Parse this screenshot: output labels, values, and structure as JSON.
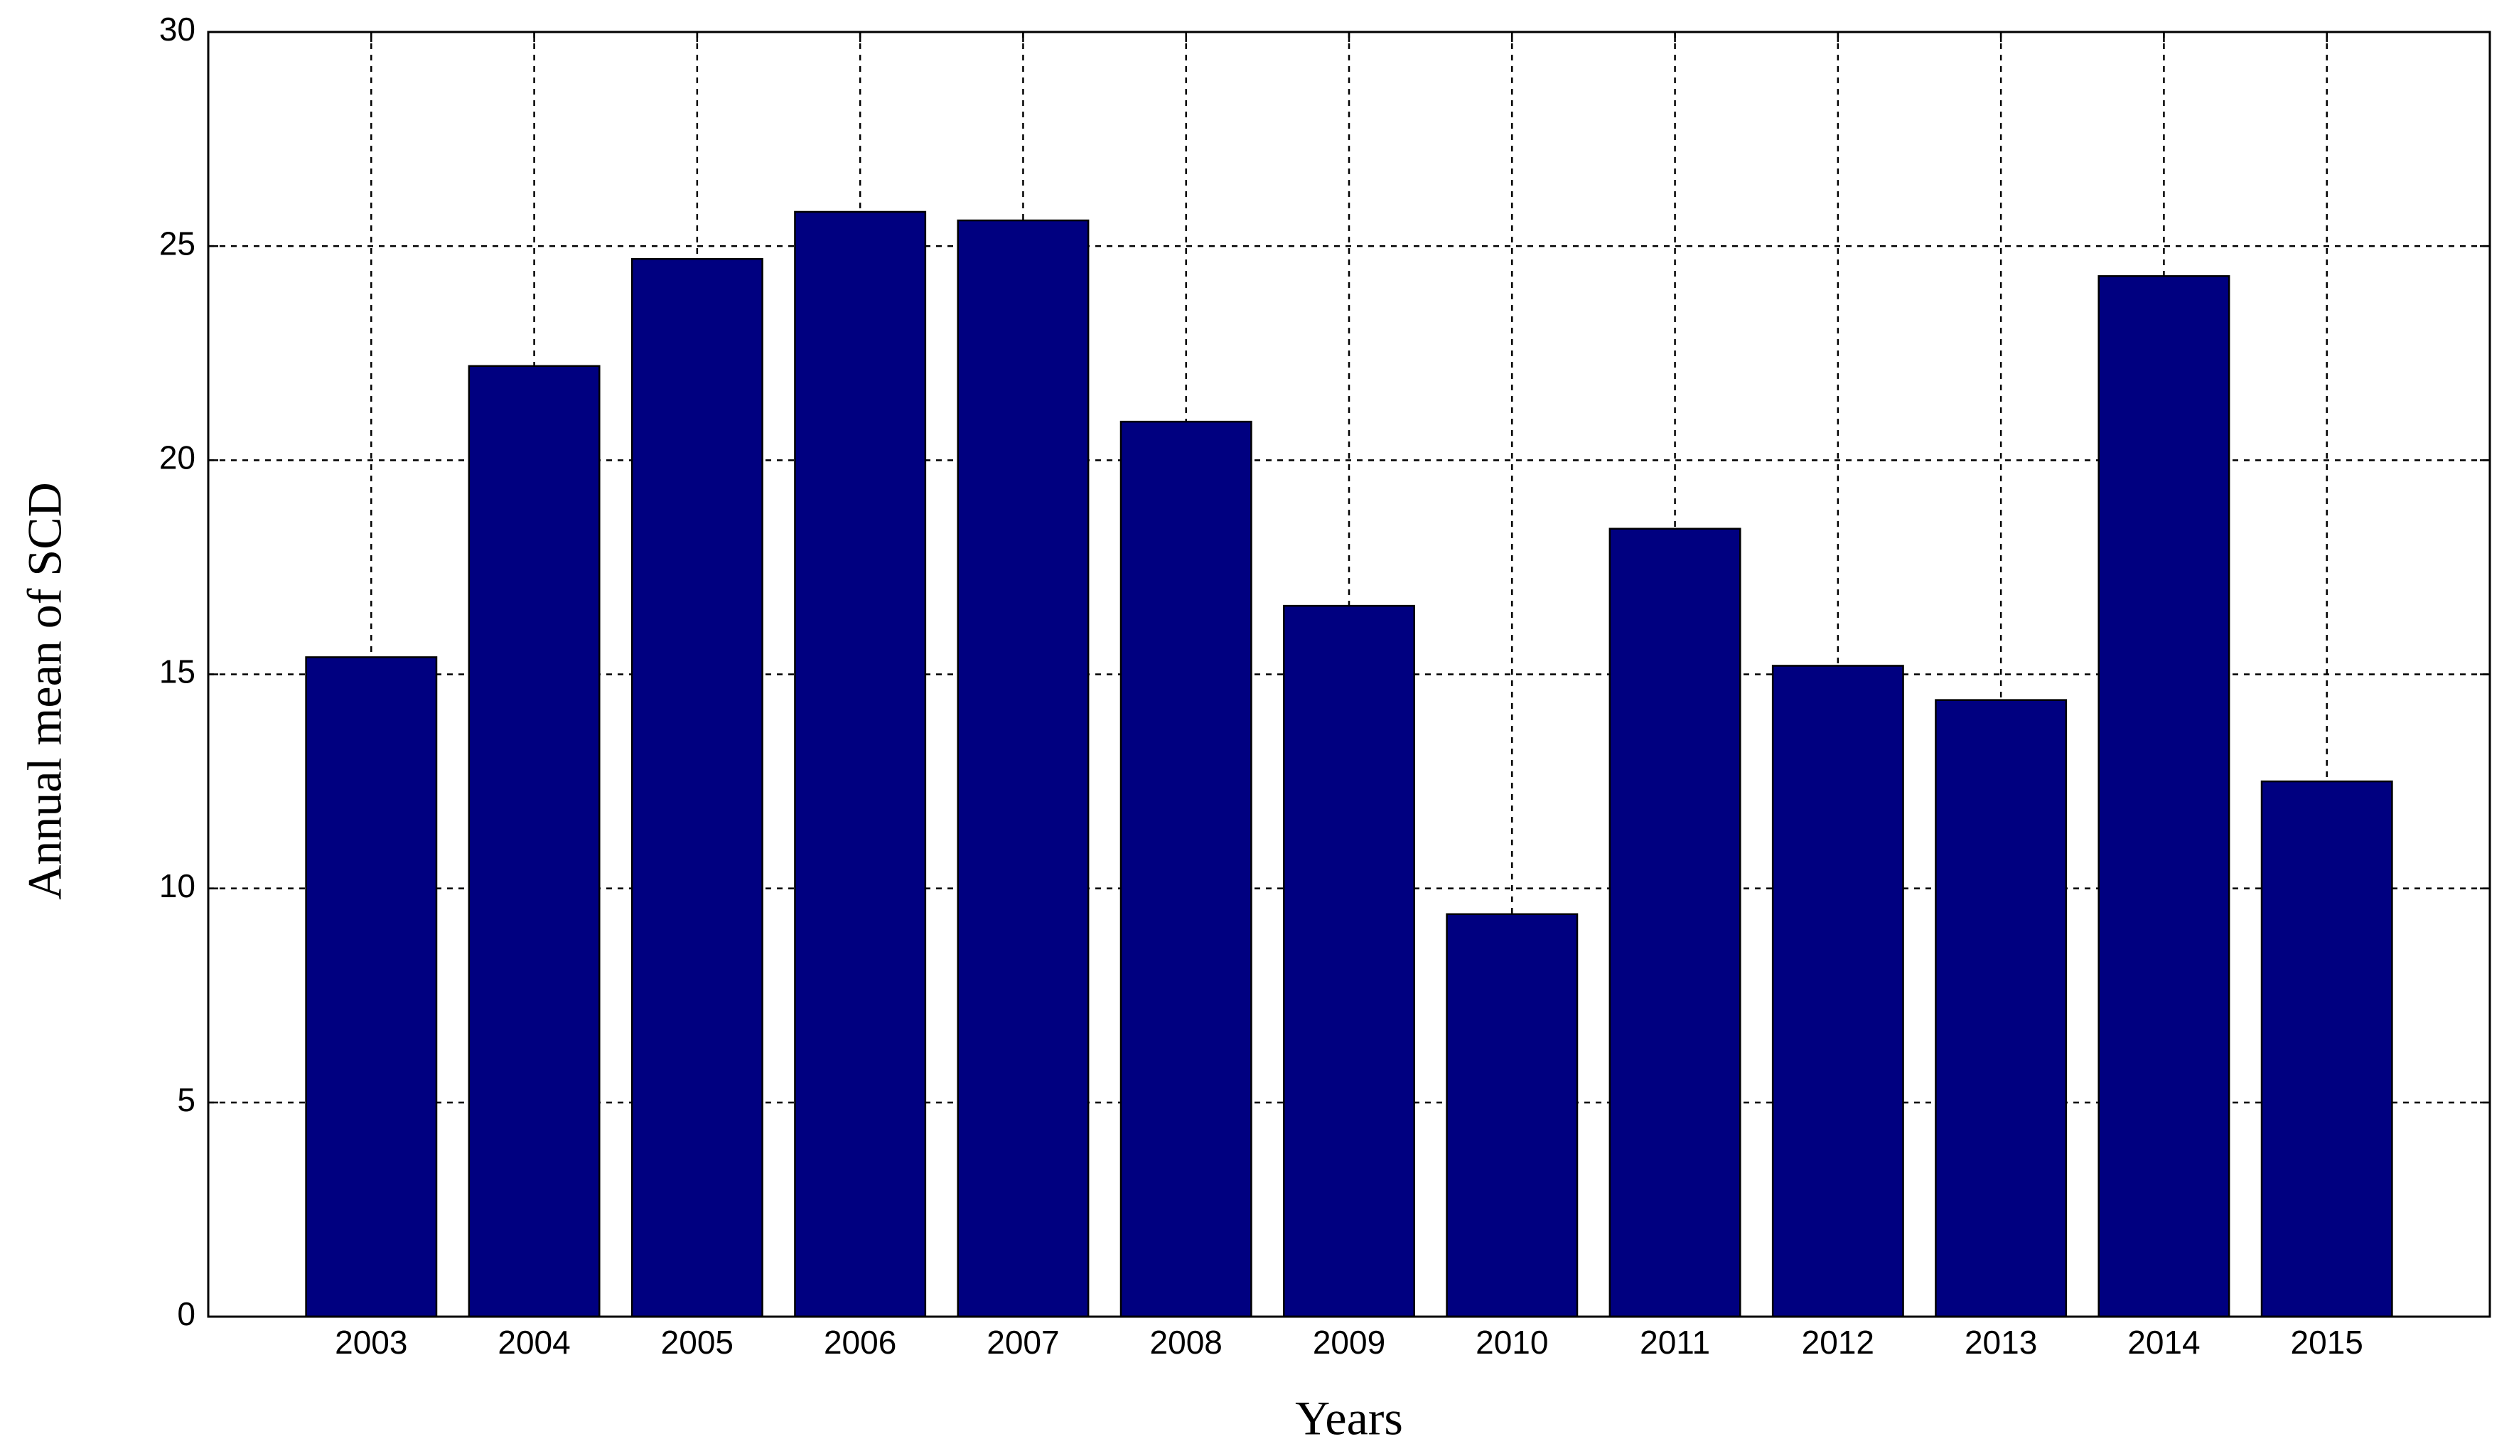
{
  "chart_data": {
    "type": "bar",
    "xlabel": "Years",
    "ylabel": "Annual mean of SCD",
    "x": [
      2003,
      2004,
      2005,
      2006,
      2007,
      2008,
      2009,
      2010,
      2011,
      2012,
      2013,
      2014,
      2015
    ],
    "values": [
      15.4,
      22.2,
      24.7,
      25.8,
      25.6,
      20.9,
      16.6,
      9.4,
      18.4,
      15.2,
      14.4,
      24.3,
      12.5
    ],
    "color": "#000080",
    "xlim": [
      2002,
      2016
    ],
    "xticks": [
      2003,
      2004,
      2005,
      2006,
      2007,
      2008,
      2009,
      2010,
      2011,
      2012,
      2013,
      2014,
      2015
    ],
    "ylim": [
      0,
      30
    ],
    "yticks": [
      0,
      5,
      10,
      15,
      20,
      25,
      30
    ],
    "grid": true
  }
}
